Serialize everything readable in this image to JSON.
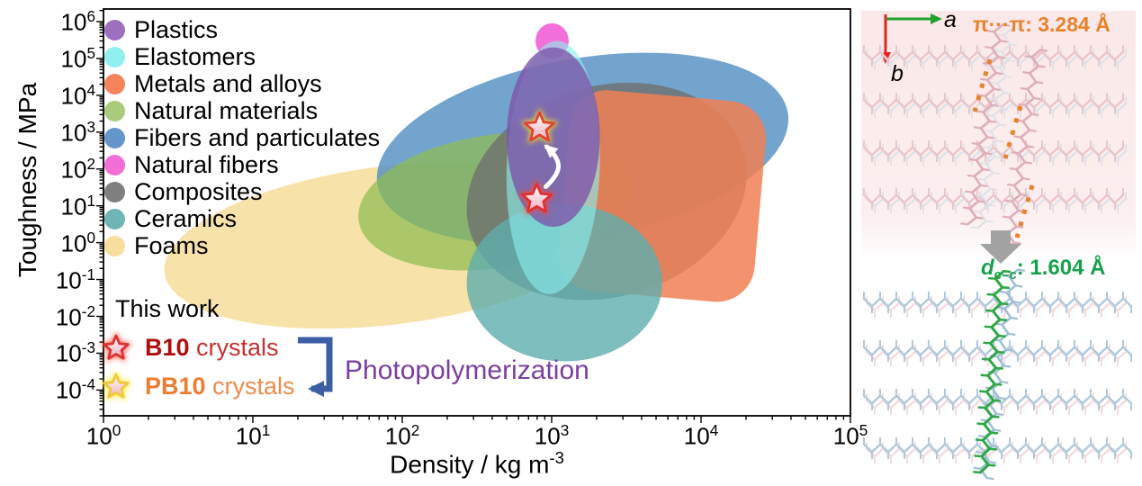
{
  "chart_data": {
    "type": "scatter",
    "title": "",
    "xlabel_main": "Density / kg m",
    "xlabel_sup": "-3",
    "ylabel": "Toughness / MPa",
    "x_scale": "log",
    "y_scale": "log",
    "xlim": [
      1,
      100000
    ],
    "ylim": [
      2e-05,
      2200000
    ],
    "x_tick_exponents": [
      0,
      1,
      2,
      3,
      4,
      5
    ],
    "y_tick_exponents": [
      6,
      5,
      4,
      3,
      2,
      1,
      0,
      -1,
      -2,
      -3,
      -4
    ],
    "grid": false,
    "legend_position": "upper-left-inside",
    "regions": [
      {
        "name": "Foams",
        "shape": "ellipse",
        "color": "#F5DC96",
        "opacity": 0.82,
        "density_range": [
          2.5,
          2700
        ],
        "toughness_range": [
          0.006,
          120
        ],
        "rotate": -7
      },
      {
        "name": "Fibers and particulates",
        "shape": "ellipse",
        "color": "#4C8AC0",
        "opacity": 0.78,
        "density_range": [
          65,
          40000
        ],
        "toughness_range": [
          1.3,
          100000
        ],
        "rotate": -10
      },
      {
        "name": "Natural materials",
        "shape": "ellipse",
        "color": "#8FBC52",
        "opacity": 0.72,
        "density_range": [
          50,
          3500
        ],
        "toughness_range": [
          0.2,
          850
        ],
        "rotate": -8
      },
      {
        "name": "Composites",
        "shape": "ellipse",
        "color": "#6E6E6E",
        "opacity": 0.78,
        "density_range": [
          260,
          21000
        ],
        "toughness_range": [
          0.034,
          18000
        ],
        "rotate": -16
      },
      {
        "name": "Metals and alloys",
        "shape": "rounded-rect",
        "color": "#F18053",
        "opacity": 0.85,
        "density_range": [
          1200,
          25000
        ],
        "toughness_range": [
          0.034,
          10000
        ],
        "rotate": 5
      },
      {
        "name": "Ceramics",
        "shape": "ellipse",
        "color": "#5FAEAE",
        "opacity": 0.8,
        "density_range": [
          270,
          5500
        ],
        "toughness_range": [
          0.0006,
          11
        ],
        "rotate": 0
      },
      {
        "name": "Natural fibers",
        "shape": "ellipse",
        "color": "#F25FD5",
        "opacity": 0.9,
        "density_range": [
          780,
          1300
        ],
        "toughness_range": [
          100000,
          900000
        ],
        "rotate": 0
      },
      {
        "name": "Elastomers",
        "shape": "ellipse",
        "color": "#8BEFEF",
        "opacity": 0.62,
        "density_range": [
          500,
          2100
        ],
        "toughness_range": [
          0.04,
          300000
        ],
        "rotate": 2
      },
      {
        "name": "Plastics",
        "shape": "ellipse",
        "color": "#7D52A8",
        "opacity": 0.78,
        "density_range": [
          500,
          2100
        ],
        "toughness_range": [
          2.7,
          200000
        ],
        "rotate": 0
      }
    ],
    "points": [
      {
        "name": "B10 crystals",
        "density": 795,
        "toughness": 15,
        "marker": "star",
        "stroke": "#E03030",
        "glow": "#FF4633"
      },
      {
        "name": "PB10 crystals",
        "density": 830,
        "toughness": 1300,
        "marker": "star",
        "stroke": "#E3432E",
        "glow": "#FFE81A"
      }
    ],
    "star_fill_top": "#FFFFFF",
    "star_fill_bottom": "#F2AEBE",
    "frame_color": "#000000",
    "transition_arrow_color": "#FFFFFF"
  },
  "legend": {
    "items": [
      {
        "label": "Plastics",
        "color": "#9F6FBF"
      },
      {
        "label": "Elastomers",
        "color": "#90EFEF"
      },
      {
        "label": "Metals and alloys",
        "color": "#F4845C"
      },
      {
        "label": "Natural materials",
        "color": "#A9CB7B"
      },
      {
        "label": "Fibers and particulates",
        "color": "#6596CB"
      },
      {
        "label": "Natural fibers",
        "color": "#F16FD4"
      },
      {
        "label": "Composites",
        "color": "#7F7F7F"
      },
      {
        "label": "Ceramics",
        "color": "#6FB5B5"
      },
      {
        "label": "Foams",
        "color": "#F7DD9E"
      }
    ]
  },
  "this_work": {
    "title": "This work",
    "items": [
      {
        "name": "B10",
        "suffix": " crystals",
        "name_color": "#AE0E0E",
        "suffix_color": "#C53030",
        "star": {
          "stroke": "#E03030",
          "glow": "#FF4633"
        }
      },
      {
        "name": "PB10",
        "suffix": " crystals",
        "name_color": "#ED7D31",
        "suffix_color": "#EE8B49",
        "star": {
          "stroke": "#EFC93C",
          "glow": "#FFE81A"
        }
      }
    ]
  },
  "annotations": {
    "photopolymerization": {
      "label": "Photopolymerization",
      "color": "#7A3FA3",
      "arrow_color": "#3B5EA6"
    }
  },
  "structure_panel": {
    "axis_a_label": "a",
    "axis_b_label": "b",
    "pi_annotation": "π···π: 3.284 Å",
    "bond_annotation": {
      "symbol": "d",
      "subscript": "c–c",
      "value": ": 1.604 Å"
    },
    "colors": {
      "background": "#FBE8E8",
      "axis_a": "#1FA32C",
      "axis_b": "#E8231C",
      "pi_text": "#E8822D",
      "pi_dots": "#E8822D",
      "bond_text": "#17A14E",
      "bond_green": "#2FA846",
      "transform_arrow": "#A3A3A3",
      "chain_pink": "#E9C3CA",
      "chain_pink_strong": "#E0AEB8",
      "chain_gray": "#DCE2E9",
      "chain_blue": "#AFC9DC",
      "chain_blue_steep": "#9FBFD5",
      "chain_pink_light": "#F0DADE"
    }
  }
}
